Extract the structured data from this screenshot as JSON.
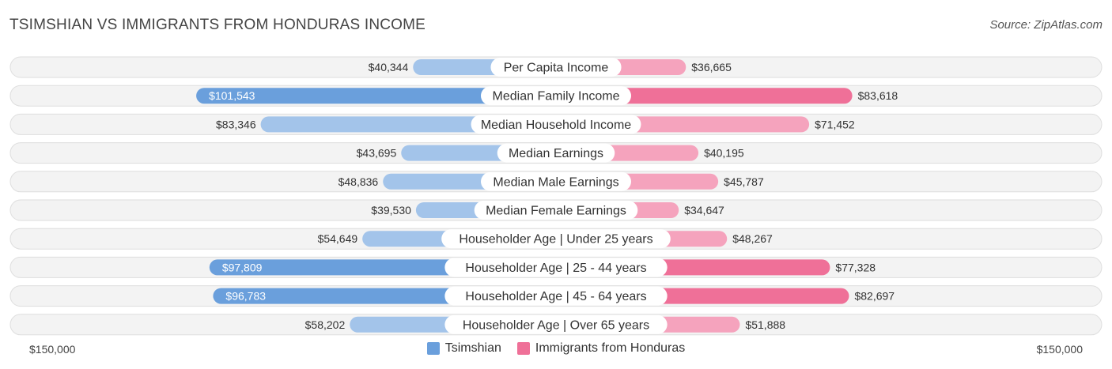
{
  "header": {
    "title": "TSIMSHIAN VS IMMIGRANTS FROM HONDURAS INCOME",
    "source": "Source: ZipAtlas.com"
  },
  "chart_data": {
    "type": "bar",
    "orientation": "horizontal-diverging",
    "categories": [
      "Per Capita Income",
      "Median Family Income",
      "Median Household Income",
      "Median Earnings",
      "Median Male Earnings",
      "Median Female Earnings",
      "Householder Age | Under 25 years",
      "Householder Age | 25 - 44 years",
      "Householder Age | 45 - 64 years",
      "Householder Age | Over 65 years"
    ],
    "series": [
      {
        "name": "Tsimshian",
        "side": "left",
        "color": "#a3c4ea",
        "color_strong": "#6a9fdc",
        "values": [
          40344,
          101543,
          83346,
          43695,
          48836,
          39530,
          54649,
          97809,
          96783,
          58202
        ],
        "labels": [
          "$40,344",
          "$101,543",
          "$83,346",
          "$43,695",
          "$48,836",
          "$39,530",
          "$54,649",
          "$97,809",
          "$96,783",
          "$58,202"
        ]
      },
      {
        "name": "Immigrants from Honduras",
        "side": "right",
        "color": "#f5a3bd",
        "color_strong": "#ef7098",
        "values": [
          36665,
          83618,
          71452,
          40195,
          45787,
          34647,
          48267,
          77328,
          82697,
          51888
        ],
        "labels": [
          "$36,665",
          "$83,618",
          "$71,452",
          "$40,195",
          "$45,787",
          "$34,647",
          "$48,267",
          "$77,328",
          "$82,697",
          "$51,888"
        ]
      }
    ],
    "xlim": [
      0,
      150000
    ],
    "axis_min_label": "$150,000",
    "axis_max_label": "$150,000",
    "legend_placement": "bottom-center"
  }
}
